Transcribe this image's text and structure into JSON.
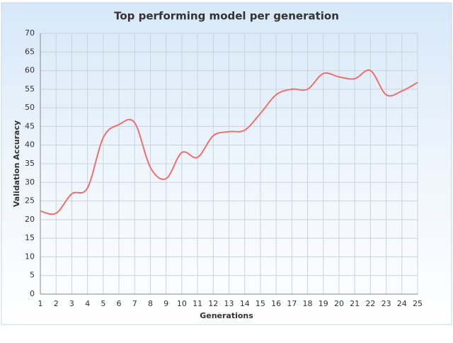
{
  "chart_data": {
    "type": "line",
    "title": "Top performing model per generation",
    "x_label": "Generations",
    "y_label": "Validation Accuracy",
    "x": [
      1,
      2,
      3,
      4,
      5,
      6,
      7,
      8,
      9,
      10,
      11,
      12,
      13,
      14,
      15,
      16,
      17,
      18,
      19,
      20,
      21,
      22,
      23,
      24,
      25
    ],
    "series": [
      {
        "name": "Validation Accuracy",
        "color": "#ef6f6c",
        "values": [
          22.3,
          21.7,
          26.9,
          28.5,
          42,
          45.5,
          46,
          34,
          31,
          38,
          36.7,
          42.5,
          43.6,
          44,
          48.5,
          53.5,
          55,
          55,
          59.2,
          58.3,
          57.8,
          60,
          53.5,
          54.5,
          56.8
        ]
      }
    ],
    "xlim": [
      1,
      25
    ],
    "xticks": [
      1,
      2,
      3,
      4,
      5,
      6,
      7,
      8,
      9,
      10,
      11,
      12,
      13,
      14,
      15,
      16,
      17,
      18,
      19,
      20,
      21,
      22,
      23,
      24,
      25
    ],
    "ylim": [
      0,
      70
    ],
    "yticks": [
      0,
      5,
      10,
      15,
      20,
      25,
      30,
      35,
      40,
      45,
      50,
      55,
      60,
      65,
      70
    ],
    "grid": true
  }
}
